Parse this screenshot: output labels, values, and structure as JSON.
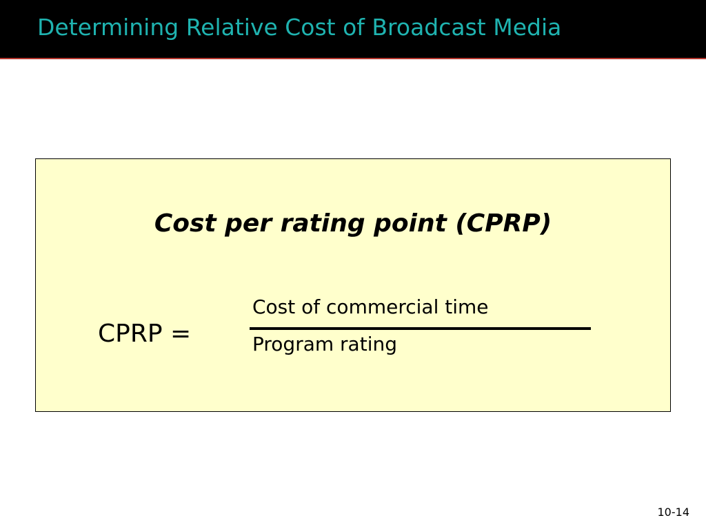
{
  "slide": {
    "title": "Determining Relative Cost of Broadcast Media",
    "slide_number": "10-14"
  },
  "formula_box": {
    "heading": "Cost per rating point (CPRP)",
    "lhs": "CPRP =",
    "numerator": "Cost of commercial time",
    "denominator": "Program rating"
  },
  "colors": {
    "title_bar_bg": "#000000",
    "title_text": "#1fb3b0",
    "title_underline": "#b5372e",
    "box_fill": "#ffffcc"
  }
}
